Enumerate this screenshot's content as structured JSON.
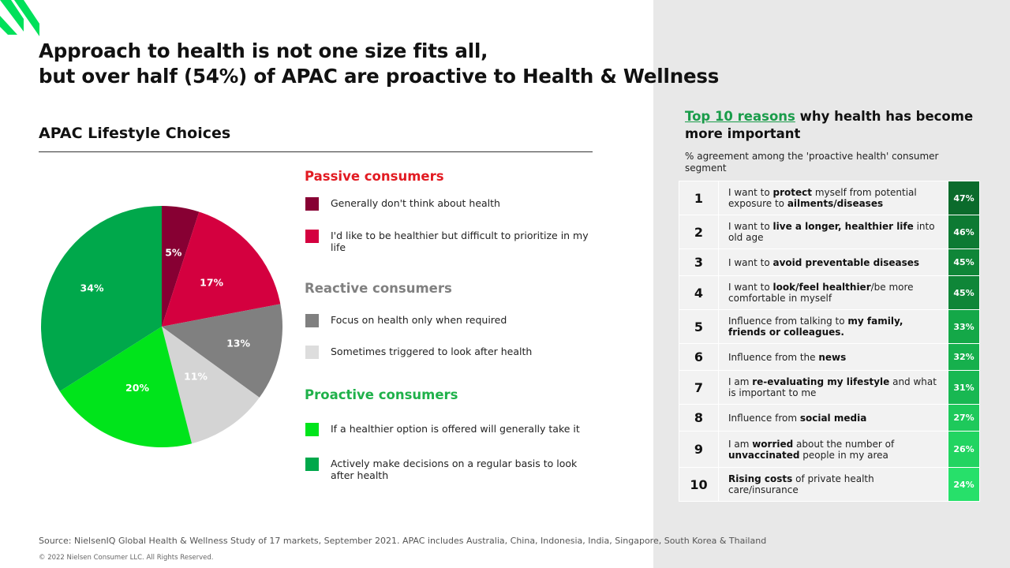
{
  "headline": {
    "line1": "Approach to health is not one size fits all,",
    "line2": "but over half (54%) of APAC are proactive to Health & Wellness"
  },
  "colors": {
    "brand_green": "#00e05a",
    "dark_red": "#870033",
    "crimson": "#d4003f",
    "dark_gray": "#808080",
    "light_gray": "#d4d4d4",
    "bright_green": "#00e41b",
    "green": "#00a84b",
    "passive_title": "#e21b22",
    "reactive_title": "#808080",
    "proactive_title": "#1fb14a"
  },
  "section_title": "APAC Lifestyle Choices",
  "chart_data": {
    "type": "pie",
    "title": "",
    "slices": [
      {
        "label": "Generally don't think about health",
        "value": 5,
        "display": "5%",
        "color": "#870033"
      },
      {
        "label": "I'd like to be healthier but difficult to prioritize in my life",
        "value": 17,
        "display": "17%",
        "color": "#d4003f"
      },
      {
        "label": "Focus on health only when required",
        "value": 13,
        "display": "13%",
        "color": "#808080"
      },
      {
        "label": "Sometimes triggered to look after health",
        "value": 11,
        "display": "11%",
        "color": "#d4d4d4"
      },
      {
        "label": "If a healthier option is offered will generally take it",
        "value": 20,
        "display": "20%",
        "color": "#00e41b"
      },
      {
        "label": "Actively make decisions on a regular basis to look after health",
        "value": 34,
        "display": "34%",
        "color": "#00a84b"
      }
    ]
  },
  "legend": {
    "passive": {
      "title": "Passive consumers",
      "items": [
        "Generally don't think about health",
        "I'd like to be healthier but difficult to prioritize in my life"
      ]
    },
    "reactive": {
      "title": "Reactive consumers",
      "items": [
        "Focus on health only when required",
        "Sometimes triggered to look after health"
      ]
    },
    "proactive": {
      "title": "Proactive consumers",
      "items": [
        "If a healthier option is offered will generally take it",
        "Actively make decisions on a regular basis to look after health"
      ]
    }
  },
  "right_panel": {
    "title_highlight": "Top 10 reasons",
    "title_rest": " why health has become more important",
    "subtitle": "% agreement among the 'proactive health' consumer segment",
    "rows": [
      {
        "rank": "1",
        "parts": [
          [
            "I want to ",
            false
          ],
          [
            "protect",
            true
          ],
          [
            " myself from potential exposure to ",
            false
          ],
          [
            "ailments/diseases",
            true
          ]
        ],
        "pct": "47%",
        "color": "#0b6b2c"
      },
      {
        "rank": "2",
        "parts": [
          [
            "I want to ",
            false
          ],
          [
            "live a longer, healthier life",
            true
          ],
          [
            " into old age",
            false
          ]
        ],
        "pct": "46%",
        "color": "#0d7a33"
      },
      {
        "rank": "3",
        "parts": [
          [
            "I want to ",
            false
          ],
          [
            "avoid preventable diseases",
            true
          ]
        ],
        "pct": "45%",
        "color": "#0f8638"
      },
      {
        "rank": "4",
        "parts": [
          [
            "I want to ",
            false
          ],
          [
            "look/feel healthier",
            true
          ],
          [
            "/be more comfortable in myself",
            false
          ]
        ],
        "pct": "45%",
        "color": "#0f8638"
      },
      {
        "rank": "5",
        "parts": [
          [
            "Influence from talking to ",
            false
          ],
          [
            "my family, friends or colleagues.",
            true
          ]
        ],
        "pct": "33%",
        "color": "#14a848"
      },
      {
        "rank": "6",
        "parts": [
          [
            "Influence from the ",
            false
          ],
          [
            "news",
            true
          ]
        ],
        "pct": "32%",
        "color": "#16b04d"
      },
      {
        "rank": "7",
        "parts": [
          [
            "I am ",
            false
          ],
          [
            "re-evaluating my lifestyle",
            true
          ],
          [
            " and what is important to me",
            false
          ]
        ],
        "pct": "31%",
        "color": "#18b852"
      },
      {
        "rank": "8",
        "parts": [
          [
            "Influence from ",
            false
          ],
          [
            "social media",
            true
          ]
        ],
        "pct": "27%",
        "color": "#1ec95b"
      },
      {
        "rank": "9",
        "parts": [
          [
            "I am ",
            false
          ],
          [
            "worried",
            true
          ],
          [
            " about the number of ",
            false
          ],
          [
            "unvaccinated",
            true
          ],
          [
            " people in my area",
            false
          ]
        ],
        "pct": "26%",
        "color": "#22d461"
      },
      {
        "rank": "10",
        "parts": [
          [
            "Rising costs",
            true
          ],
          [
            " of private health care/insurance",
            false
          ]
        ],
        "pct": "24%",
        "color": "#27e06a"
      }
    ]
  },
  "footer": {
    "source": "Source: NielsenIQ Global Health & Wellness Study of 17 markets, September 2021. APAC includes Australia, China, Indonesia, India, Singapore, South Korea & Thailand",
    "copyright": "© 2022 Nielsen Consumer LLC. All Rights Reserved."
  }
}
